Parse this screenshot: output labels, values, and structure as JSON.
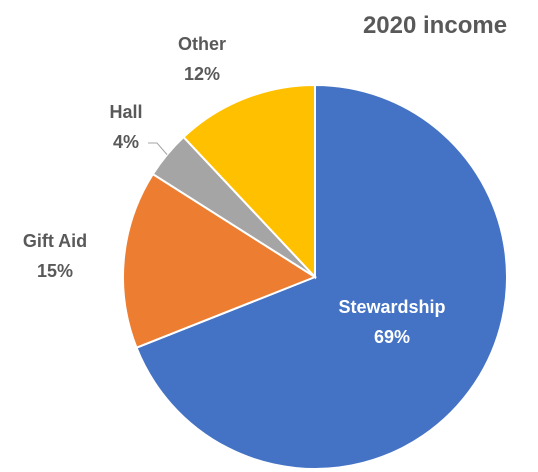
{
  "chart_data": {
    "type": "pie",
    "title": "2020 income",
    "slices": [
      {
        "label": "Stewardship",
        "value": 69,
        "display": "69%",
        "color": "#4472C4"
      },
      {
        "label": "Gift Aid",
        "value": 15,
        "display": "15%",
        "color": "#ED7D31"
      },
      {
        "label": "Hall",
        "value": 4,
        "display": "4%",
        "color": "#A5A5A5"
      },
      {
        "label": "Other",
        "value": 12,
        "display": "12%",
        "color": "#FFC000"
      }
    ],
    "start_angle_deg": 0,
    "direction": "clockwise",
    "legend": "none"
  }
}
